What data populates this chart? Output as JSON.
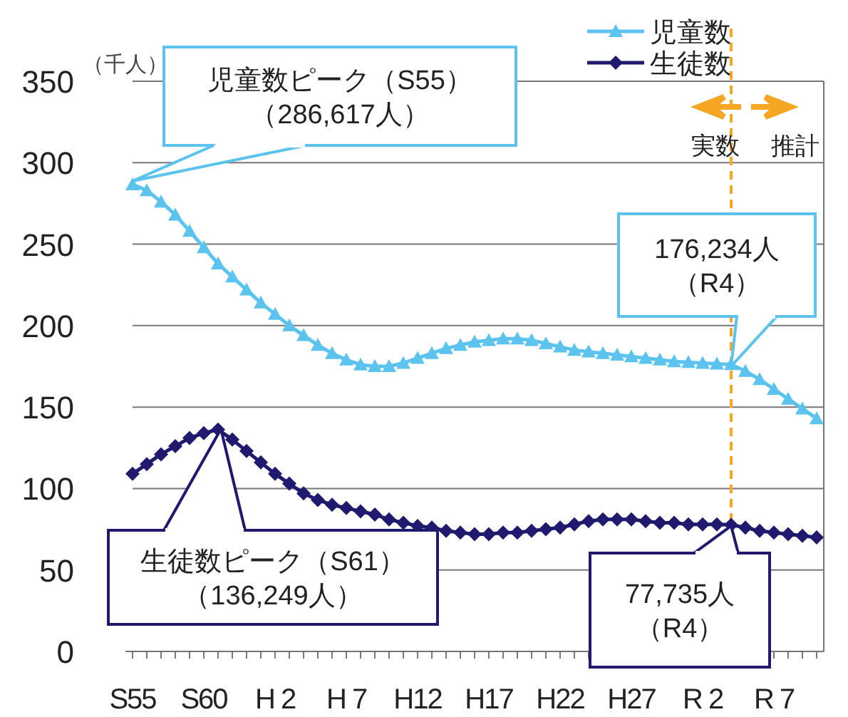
{
  "chart_data": {
    "type": "line",
    "ylabel": "（千人）",
    "categories": [
      "S55",
      null,
      null,
      null,
      null,
      "S60",
      null,
      null,
      null,
      null,
      "H 2",
      null,
      null,
      null,
      null,
      "H 7",
      null,
      null,
      null,
      null,
      "H12",
      null,
      null,
      null,
      null,
      "H17",
      null,
      null,
      null,
      null,
      "H22",
      null,
      null,
      null,
      null,
      "H27",
      null,
      null,
      null,
      null,
      "R 2",
      null,
      null,
      null,
      null,
      "R 7",
      null,
      null,
      null
    ],
    "series": [
      {
        "name": "児童数",
        "color": "#5bc3ee",
        "marker": "triangle",
        "values": [
          286.6,
          283,
          276,
          268,
          258,
          248,
          238,
          230,
          222,
          214,
          207,
          200,
          194,
          188,
          183,
          179,
          176,
          175,
          175,
          177,
          180,
          183,
          186,
          188,
          190,
          191,
          192,
          192,
          191,
          189,
          187,
          185,
          184,
          183,
          182,
          181,
          180,
          179,
          178,
          177.5,
          177,
          176.5,
          176.2,
          172,
          167,
          161,
          155,
          149,
          143
        ]
      },
      {
        "name": "生徒数",
        "color": "#1f1a6e",
        "marker": "diamond",
        "values": [
          109,
          115,
          121,
          126,
          131,
          134,
          136.2,
          130,
          123,
          116,
          109,
          103,
          97,
          93,
          90,
          88,
          86,
          84,
          81,
          79,
          77,
          76,
          74,
          73,
          72,
          72,
          73,
          73,
          74,
          75,
          76,
          78,
          80,
          81,
          81,
          81,
          80,
          79,
          79,
          78,
          78,
          78,
          77.7,
          76,
          74,
          73,
          72,
          71,
          70
        ]
      }
    ],
    "ylim": [
      0,
      350
    ],
    "yticks": [
      0,
      50,
      100,
      150,
      200,
      250,
      300,
      350
    ],
    "grid": "y",
    "legend": "top right",
    "annotations": [
      "児童数ピーク（S55）（286,617人）",
      "176,234人（R4）",
      "生徒数ピーク（S61）（136,249人）",
      "77,735人（R4）",
      "実数",
      "推計"
    ]
  }
}
